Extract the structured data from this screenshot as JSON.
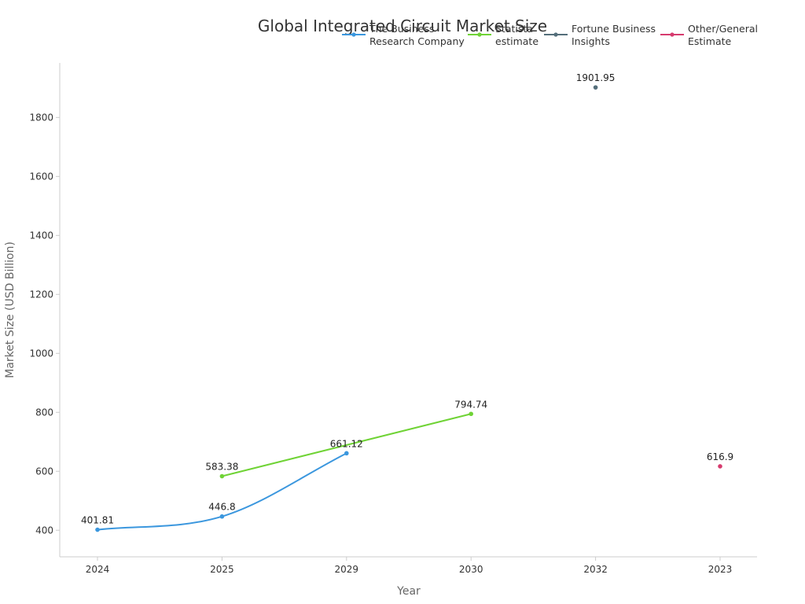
{
  "chart_data": {
    "type": "line",
    "title": "Global Integrated Circuit Market Size",
    "xlabel": "Year",
    "ylabel": "Market Size (USD Billion)",
    "categories": [
      "2024",
      "2025",
      "2029",
      "2030",
      "2032",
      "2023"
    ],
    "y_ticks": [
      400,
      600,
      800,
      1000,
      1200,
      1400,
      1600,
      1800
    ],
    "ylim": [
      310,
      1985
    ],
    "grid": false,
    "legend_position": "top-right",
    "series": [
      {
        "name": "The Business Research Company",
        "legend_lines": [
          "The Business",
          "Research Company"
        ],
        "color": "#3b97de",
        "smooth": true,
        "points": [
          {
            "x": "2024",
            "y": 401.81,
            "label": "401.81"
          },
          {
            "x": "2025",
            "y": 446.8,
            "label": "446.8"
          },
          {
            "x": "2029",
            "y": 661.12,
            "label": "661.12"
          }
        ]
      },
      {
        "name": "Statista estimate",
        "legend_lines": [
          "Statista",
          "estimate"
        ],
        "color": "#6fd335",
        "smooth": false,
        "points": [
          {
            "x": "2025",
            "y": 583.38,
            "label": "583.38"
          },
          {
            "x": "2030",
            "y": 794.74,
            "label": "794.74"
          }
        ]
      },
      {
        "name": "Fortune Business Insights",
        "legend_lines": [
          "Fortune Business",
          "Insights"
        ],
        "color": "#546e7a",
        "smooth": false,
        "points": [
          {
            "x": "2032",
            "y": 1901.95,
            "label": "1901.95"
          }
        ]
      },
      {
        "name": "Other/General Estimate",
        "legend_lines": [
          "Other/General",
          "Estimate"
        ],
        "color": "#d63b6e",
        "smooth": false,
        "points": [
          {
            "x": "2023",
            "y": 616.9,
            "label": "616.9"
          }
        ]
      }
    ]
  }
}
